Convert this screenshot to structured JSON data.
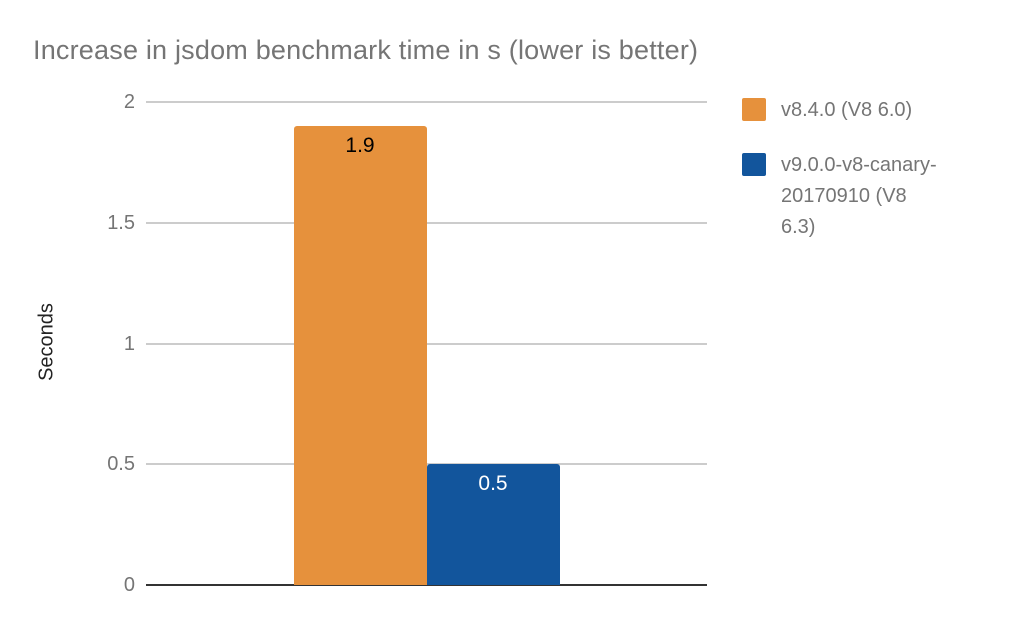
{
  "chart_data": {
    "type": "bar",
    "title": "Increase in jsdom benchmark time in s (lower is better)",
    "xlabel": "",
    "ylabel": "Seconds",
    "categories": [
      ""
    ],
    "series": [
      {
        "name": "v8.4.0 (V8 6.0)",
        "name_lines": [
          "v8.4.0 (V8 6.0)"
        ],
        "color": "#e6913c",
        "label_color": "#000000",
        "values": [
          1.9
        ],
        "data_labels": [
          "1.9"
        ]
      },
      {
        "name": "v9.0.0-v8-canary-20170910 (V8 6.3)",
        "name_lines": [
          "v9.0.0-v8-canary-",
          "20170910 (V8",
          "6.3)"
        ],
        "color": "#12559c",
        "label_color": "#ffffff",
        "values": [
          0.5
        ],
        "data_labels": [
          "0.5"
        ]
      }
    ],
    "ylim": [
      0,
      2
    ],
    "y_ticks": [
      {
        "label": "0",
        "value": 0
      },
      {
        "label": "0.5",
        "value": 0.5
      },
      {
        "label": "1",
        "value": 1
      },
      {
        "label": "1.5",
        "value": 1.5
      },
      {
        "label": "2",
        "value": 2
      }
    ],
    "grid": true,
    "legend_position": "right",
    "colors": {
      "title_text": "#757575",
      "axis_tick_text": "#757575",
      "axis_title_text": "#222222",
      "legend_text": "#757575",
      "gridline": "#cccccc",
      "baseline": "#333333",
      "background": "#ffffff"
    }
  }
}
